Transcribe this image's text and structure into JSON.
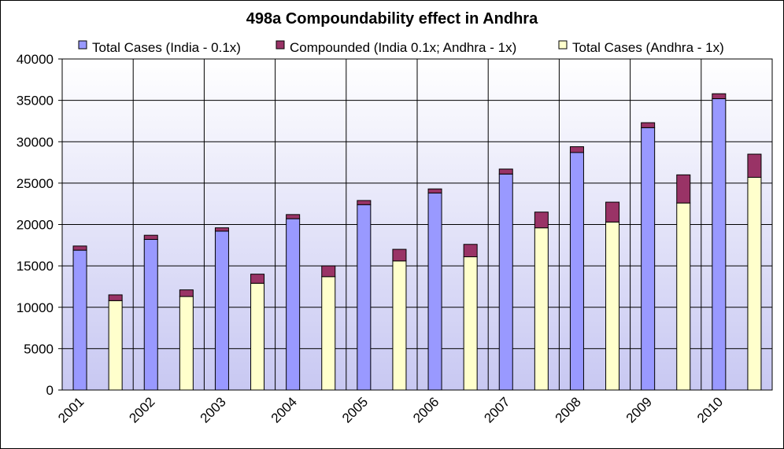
{
  "chart_data": {
    "type": "bar",
    "stacked": true,
    "title": "498a Compoundability effect in Andhra",
    "xlabel": "",
    "ylabel": "",
    "ylim": [
      0,
      40000
    ],
    "yticks": [
      0,
      5000,
      10000,
      15000,
      20000,
      25000,
      30000,
      35000,
      40000
    ],
    "grid": true,
    "legend_position": "top",
    "categories": [
      "2001",
      "",
      "2002",
      "",
      "2003",
      "",
      "2004",
      "",
      "2005",
      "",
      "2006",
      "",
      "2007",
      "",
      "2008",
      "",
      "2009",
      "",
      "2010",
      ""
    ],
    "series": [
      {
        "name": "Total Cases (India - 0.1x)",
        "color": "#9999ff",
        "values": [
          16900,
          0,
          18200,
          0,
          19200,
          0,
          20700,
          0,
          22400,
          0,
          23800,
          0,
          26100,
          0,
          28700,
          0,
          31700,
          0,
          35200,
          0
        ]
      },
      {
        "name": "Compounded (India 0.1x; Andhra - 1x)",
        "color": "#993366",
        "values": [
          500,
          700,
          500,
          800,
          400,
          1100,
          500,
          1300,
          500,
          1400,
          500,
          1500,
          600,
          1900,
          700,
          2400,
          600,
          3400,
          600,
          2800
        ]
      },
      {
        "name": "Total Cases (Andhra - 1x)",
        "color": "#ffffcc",
        "values": [
          0,
          10800,
          0,
          11300,
          0,
          12900,
          0,
          13700,
          0,
          15600,
          0,
          16100,
          0,
          19600,
          0,
          20300,
          0,
          22600,
          0,
          25700
        ]
      }
    ]
  }
}
